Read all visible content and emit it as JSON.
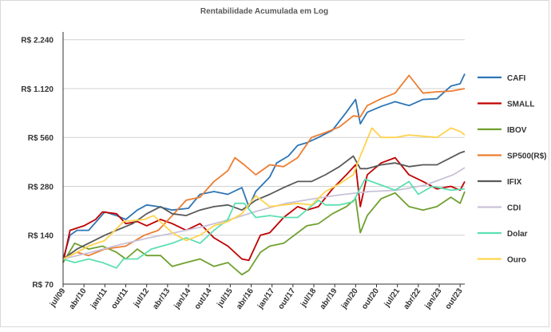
{
  "chart_data": {
    "type": "line",
    "title": "Rentabilidade Acumulada em Log",
    "y_scale": "log",
    "ylim": [
      70,
      2500
    ],
    "y_ticks": [
      {
        "value": 70,
        "label": "R$ 70"
      },
      {
        "value": 140,
        "label": "R$ 140"
      },
      {
        "value": 280,
        "label": "R$ 280"
      },
      {
        "value": 560,
        "label": "R$ 560"
      },
      {
        "value": 1120,
        "label": "R$ 1.120"
      },
      {
        "value": 2240,
        "label": "R$ 2.240"
      }
    ],
    "x_range": [
      "2009-07",
      "2023-12"
    ],
    "x_ticks": [
      "jul/09",
      "abr/10",
      "jan/11",
      "out/11",
      "jul/12",
      "abr/13",
      "jan/14",
      "out/14",
      "jul/15",
      "abr/16",
      "jan/17",
      "out/17",
      "jul/18",
      "abr/19",
      "jan/20",
      "out/20",
      "jul/21",
      "abr/22",
      "jan/23",
      "out/23"
    ],
    "x_tick_dates": [
      "2009-07",
      "2010-04",
      "2011-01",
      "2011-10",
      "2012-07",
      "2013-04",
      "2014-01",
      "2014-10",
      "2015-07",
      "2016-04",
      "2017-01",
      "2017-10",
      "2018-07",
      "2019-04",
      "2020-01",
      "2020-10",
      "2021-07",
      "2022-04",
      "2023-01",
      "2023-10"
    ],
    "grid": "horizontal",
    "legend_position": "right",
    "series": [
      {
        "name": "CAFI",
        "color": "#2e75b6",
        "points": [
          [
            "2009-07",
            100
          ],
          [
            "2009-10",
            140
          ],
          [
            "2010-01",
            150
          ],
          [
            "2010-06",
            150
          ],
          [
            "2011-01",
            195
          ],
          [
            "2011-06",
            185
          ],
          [
            "2011-10",
            175
          ],
          [
            "2012-03",
            200
          ],
          [
            "2012-07",
            215
          ],
          [
            "2012-12",
            210
          ],
          [
            "2013-06",
            200
          ],
          [
            "2014-01",
            205
          ],
          [
            "2014-06",
            250
          ],
          [
            "2014-12",
            260
          ],
          [
            "2015-06",
            250
          ],
          [
            "2015-12",
            275
          ],
          [
            "2016-03",
            210
          ],
          [
            "2016-06",
            260
          ],
          [
            "2016-12",
            320
          ],
          [
            "2017-03",
            390
          ],
          [
            "2017-08",
            430
          ],
          [
            "2017-12",
            500
          ],
          [
            "2018-04",
            520
          ],
          [
            "2018-09",
            560
          ],
          [
            "2019-03",
            620
          ],
          [
            "2019-09",
            800
          ],
          [
            "2020-01",
            960
          ],
          [
            "2020-03",
            680
          ],
          [
            "2020-06",
            800
          ],
          [
            "2020-12",
            870
          ],
          [
            "2021-06",
            930
          ],
          [
            "2021-12",
            880
          ],
          [
            "2022-06",
            960
          ],
          [
            "2022-12",
            970
          ],
          [
            "2023-06",
            1160
          ],
          [
            "2023-10",
            1200
          ],
          [
            "2023-12",
            1380
          ]
        ]
      },
      {
        "name": "SMALL",
        "color": "#c00000",
        "points": [
          [
            "2009-07",
            95
          ],
          [
            "2009-10",
            150
          ],
          [
            "2010-04",
            160
          ],
          [
            "2010-09",
            175
          ],
          [
            "2010-12",
            195
          ],
          [
            "2011-06",
            190
          ],
          [
            "2011-10",
            165
          ],
          [
            "2012-03",
            170
          ],
          [
            "2012-07",
            160
          ],
          [
            "2013-01",
            175
          ],
          [
            "2013-06",
            165
          ],
          [
            "2013-12",
            150
          ],
          [
            "2014-06",
            165
          ],
          [
            "2014-12",
            135
          ],
          [
            "2015-06",
            120
          ],
          [
            "2015-12",
            100
          ],
          [
            "2016-03",
            98
          ],
          [
            "2016-08",
            140
          ],
          [
            "2016-12",
            145
          ],
          [
            "2017-06",
            180
          ],
          [
            "2017-12",
            210
          ],
          [
            "2018-04",
            200
          ],
          [
            "2018-09",
            210
          ],
          [
            "2019-03",
            270
          ],
          [
            "2019-09",
            330
          ],
          [
            "2020-01",
            380
          ],
          [
            "2020-03",
            210
          ],
          [
            "2020-06",
            330
          ],
          [
            "2020-12",
            390
          ],
          [
            "2021-06",
            420
          ],
          [
            "2021-12",
            330
          ],
          [
            "2022-06",
            300
          ],
          [
            "2022-12",
            270
          ],
          [
            "2023-06",
            280
          ],
          [
            "2023-10",
            265
          ],
          [
            "2023-12",
            300
          ]
        ]
      },
      {
        "name": "IBOV",
        "color": "#70a030",
        "points": [
          [
            "2009-07",
            95
          ],
          [
            "2009-12",
            125
          ],
          [
            "2010-06",
            115
          ],
          [
            "2010-12",
            120
          ],
          [
            "2011-06",
            110
          ],
          [
            "2011-10",
            100
          ],
          [
            "2012-03",
            115
          ],
          [
            "2012-07",
            105
          ],
          [
            "2013-01",
            105
          ],
          [
            "2013-06",
            90
          ],
          [
            "2013-12",
            95
          ],
          [
            "2014-06",
            100
          ],
          [
            "2014-12",
            90
          ],
          [
            "2015-06",
            95
          ],
          [
            "2015-12",
            80
          ],
          [
            "2016-03",
            85
          ],
          [
            "2016-08",
            110
          ],
          [
            "2016-12",
            120
          ],
          [
            "2017-06",
            125
          ],
          [
            "2017-12",
            145
          ],
          [
            "2018-04",
            160
          ],
          [
            "2018-09",
            165
          ],
          [
            "2019-03",
            190
          ],
          [
            "2019-09",
            210
          ],
          [
            "2020-01",
            235
          ],
          [
            "2020-03",
            145
          ],
          [
            "2020-06",
            185
          ],
          [
            "2020-12",
            235
          ],
          [
            "2021-06",
            255
          ],
          [
            "2021-12",
            210
          ],
          [
            "2022-06",
            200
          ],
          [
            "2022-12",
            210
          ],
          [
            "2023-06",
            240
          ],
          [
            "2023-10",
            220
          ],
          [
            "2023-12",
            260
          ]
        ]
      },
      {
        "name": "SP500(R$)",
        "color": "#ed7d31",
        "points": [
          [
            "2009-07",
            100
          ],
          [
            "2010-01",
            110
          ],
          [
            "2010-06",
            105
          ],
          [
            "2011-01",
            115
          ],
          [
            "2011-10",
            120
          ],
          [
            "2012-06",
            140
          ],
          [
            "2012-12",
            150
          ],
          [
            "2013-06",
            185
          ],
          [
            "2013-12",
            230
          ],
          [
            "2014-06",
            240
          ],
          [
            "2014-12",
            300
          ],
          [
            "2015-06",
            350
          ],
          [
            "2015-09",
            420
          ],
          [
            "2016-01",
            380
          ],
          [
            "2016-06",
            330
          ],
          [
            "2016-12",
            380
          ],
          [
            "2017-06",
            370
          ],
          [
            "2017-12",
            420
          ],
          [
            "2018-06",
            560
          ],
          [
            "2018-12",
            600
          ],
          [
            "2019-06",
            650
          ],
          [
            "2019-12",
            760
          ],
          [
            "2020-03",
            750
          ],
          [
            "2020-06",
            880
          ],
          [
            "2020-12",
            970
          ],
          [
            "2021-06",
            1050
          ],
          [
            "2021-12",
            1350
          ],
          [
            "2022-06",
            1050
          ],
          [
            "2022-12",
            1070
          ],
          [
            "2023-06",
            1080
          ],
          [
            "2023-12",
            1120
          ]
        ]
      },
      {
        "name": "IFIX",
        "color": "#595959",
        "points": [
          [
            "2009-07",
            100
          ],
          [
            "2010-01",
            115
          ],
          [
            "2010-06",
            125
          ],
          [
            "2011-01",
            140
          ],
          [
            "2011-06",
            150
          ],
          [
            "2012-01",
            165
          ],
          [
            "2012-07",
            190
          ],
          [
            "2013-01",
            210
          ],
          [
            "2013-06",
            190
          ],
          [
            "2013-12",
            185
          ],
          [
            "2014-06",
            200
          ],
          [
            "2014-12",
            210
          ],
          [
            "2015-06",
            215
          ],
          [
            "2015-12",
            200
          ],
          [
            "2016-06",
            230
          ],
          [
            "2016-12",
            250
          ],
          [
            "2017-06",
            275
          ],
          [
            "2017-12",
            300
          ],
          [
            "2018-06",
            300
          ],
          [
            "2018-12",
            330
          ],
          [
            "2019-06",
            370
          ],
          [
            "2019-12",
            430
          ],
          [
            "2020-03",
            360
          ],
          [
            "2020-06",
            360
          ],
          [
            "2020-12",
            380
          ],
          [
            "2021-06",
            390
          ],
          [
            "2021-12",
            370
          ],
          [
            "2022-06",
            380
          ],
          [
            "2022-12",
            380
          ],
          [
            "2023-06",
            420
          ],
          [
            "2023-10",
            450
          ],
          [
            "2023-12",
            460
          ]
        ]
      },
      {
        "name": "CDI",
        "color": "#c9c2d8",
        "points": [
          [
            "2009-07",
            100
          ],
          [
            "2010-07",
            110
          ],
          [
            "2011-07",
            122
          ],
          [
            "2012-07",
            134
          ],
          [
            "2013-07",
            145
          ],
          [
            "2014-07",
            158
          ],
          [
            "2015-07",
            175
          ],
          [
            "2016-07",
            198
          ],
          [
            "2017-07",
            220
          ],
          [
            "2018-07",
            235
          ],
          [
            "2019-07",
            249
          ],
          [
            "2020-07",
            260
          ],
          [
            "2021-07",
            265
          ],
          [
            "2022-07",
            285
          ],
          [
            "2023-07",
            330
          ],
          [
            "2023-12",
            365
          ]
        ]
      },
      {
        "name": "Dolar",
        "color": "#5ce0b0",
        "points": [
          [
            "2009-07",
            100
          ],
          [
            "2009-12",
            95
          ],
          [
            "2010-06",
            100
          ],
          [
            "2010-12",
            95
          ],
          [
            "2011-06",
            88
          ],
          [
            "2011-09",
            100
          ],
          [
            "2012-03",
            100
          ],
          [
            "2012-09",
            115
          ],
          [
            "2013-06",
            125
          ],
          [
            "2013-12",
            135
          ],
          [
            "2014-06",
            125
          ],
          [
            "2014-12",
            150
          ],
          [
            "2015-06",
            175
          ],
          [
            "2015-09",
            220
          ],
          [
            "2016-01",
            220
          ],
          [
            "2016-06",
            180
          ],
          [
            "2016-12",
            185
          ],
          [
            "2017-06",
            180
          ],
          [
            "2017-12",
            180
          ],
          [
            "2018-09",
            230
          ],
          [
            "2018-12",
            215
          ],
          [
            "2019-06",
            215
          ],
          [
            "2019-12",
            225
          ],
          [
            "2020-05",
            310
          ],
          [
            "2020-12",
            285
          ],
          [
            "2021-06",
            265
          ],
          [
            "2021-12",
            300
          ],
          [
            "2022-04",
            250
          ],
          [
            "2022-10",
            280
          ],
          [
            "2023-06",
            265
          ],
          [
            "2023-12",
            270
          ]
        ]
      },
      {
        "name": "Ouro",
        "color": "#ffd34d",
        "points": [
          [
            "2009-07",
            100
          ],
          [
            "2010-01",
            110
          ],
          [
            "2010-06",
            120
          ],
          [
            "2011-01",
            130
          ],
          [
            "2011-09",
            170
          ],
          [
            "2012-06",
            175
          ],
          [
            "2012-10",
            185
          ],
          [
            "2013-06",
            145
          ],
          [
            "2013-12",
            130
          ],
          [
            "2014-06",
            140
          ],
          [
            "2014-12",
            160
          ],
          [
            "2015-06",
            170
          ],
          [
            "2015-12",
            190
          ],
          [
            "2016-06",
            245
          ],
          [
            "2016-12",
            210
          ],
          [
            "2017-06",
            215
          ],
          [
            "2017-12",
            220
          ],
          [
            "2018-06",
            215
          ],
          [
            "2018-12",
            260
          ],
          [
            "2019-06",
            290
          ],
          [
            "2019-12",
            330
          ],
          [
            "2020-03",
            430
          ],
          [
            "2020-08",
            640
          ],
          [
            "2020-12",
            560
          ],
          [
            "2021-06",
            560
          ],
          [
            "2021-12",
            580
          ],
          [
            "2022-06",
            570
          ],
          [
            "2022-12",
            560
          ],
          [
            "2023-06",
            640
          ],
          [
            "2023-10",
            610
          ],
          [
            "2023-12",
            580
          ]
        ]
      }
    ]
  }
}
